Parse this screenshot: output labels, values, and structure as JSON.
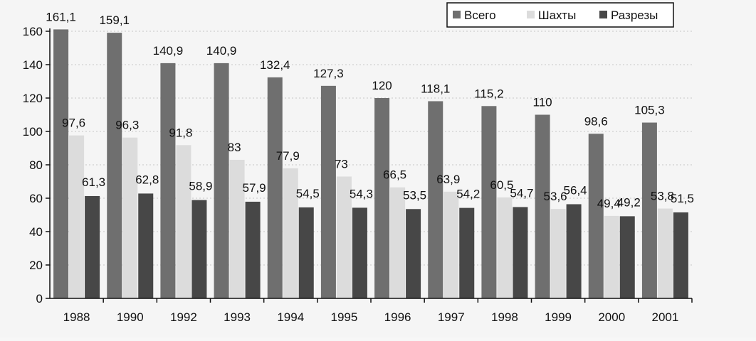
{
  "chart_data": {
    "type": "bar",
    "categories": [
      "1988",
      "1990",
      "1992",
      "1993",
      "1994",
      "1995",
      "1996",
      "1997",
      "1998",
      "1999",
      "2000",
      "2001"
    ],
    "series": [
      {
        "name": "Всего",
        "values": [
          161.1,
          159.1,
          140.9,
          140.9,
          132.4,
          127.3,
          120,
          118.1,
          115.2,
          110,
          98.6,
          105.3
        ],
        "labels": [
          "161,1",
          "159,1",
          "140,9",
          "140,9",
          "132,4",
          "127,3",
          "120",
          "118,1",
          "115,2",
          "110",
          "98,6",
          "105,3"
        ]
      },
      {
        "name": "Шахты",
        "values": [
          97.6,
          96.3,
          91.8,
          83,
          77.9,
          73,
          66.5,
          63.9,
          60.5,
          53.6,
          49.4,
          53.8
        ],
        "labels": [
          "97,6",
          "96,3",
          "91,8",
          "83",
          "77,9",
          "73",
          "66,5",
          "63,9",
          "60,5",
          "53,6",
          "49,4",
          "53,8"
        ]
      },
      {
        "name": "Разрезы",
        "values": [
          61.3,
          62.8,
          58.9,
          57.9,
          54.5,
          54.3,
          53.5,
          54.2,
          54.7,
          56.4,
          49.2,
          51.5
        ],
        "labels": [
          "61,3",
          "62,8",
          "58,9",
          "57,9",
          "54,5",
          "54,3",
          "53,5",
          "54,2",
          "54,7",
          "56,4",
          "49,2",
          "51,5"
        ]
      }
    ],
    "y_ticks": [
      0,
      20,
      40,
      60,
      80,
      100,
      120,
      140,
      160
    ],
    "ylim": [
      0,
      160
    ],
    "grid": true,
    "legend_position": "top-right",
    "title": "",
    "xlabel": "",
    "ylabel": ""
  },
  "colors": {
    "series": [
      "#6f6f6f",
      "#dcdcdc",
      "#474747"
    ],
    "background": "#f5f5f5",
    "grid": "#c8c8c8",
    "axis": "#111111",
    "text": "#111111"
  }
}
